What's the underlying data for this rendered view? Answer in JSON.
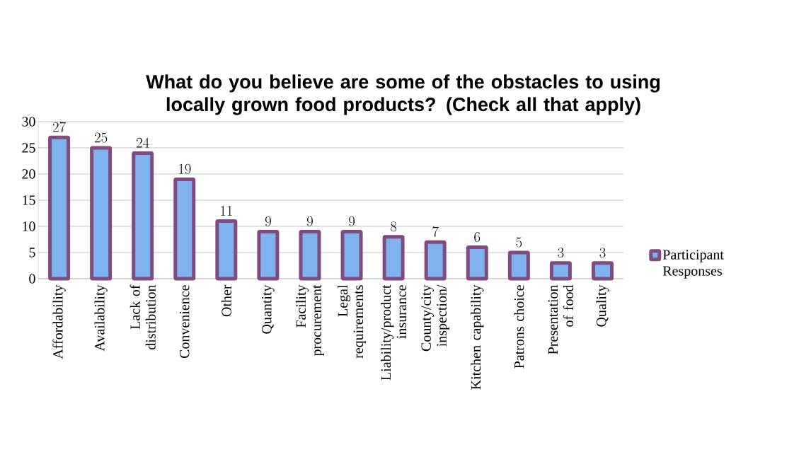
{
  "chart_data": {
    "type": "bar",
    "title": "What do you believe are some of the obstacles to using locally grown food products? (Check all that apply)",
    "categories": [
      "Affordability",
      "Availability",
      "Lack of distribution",
      "Convenience",
      "Other",
      "Quantity",
      "Facility procurement",
      "Legal requirements",
      "Liability/product insurance",
      "County/city inspection/",
      "Kitchen capability",
      "Patrons choice",
      "Presentation of food",
      "Quality"
    ],
    "series": [
      {
        "name": "Participant Responses",
        "color": "#7fb2ee",
        "values": [
          27,
          25,
          24,
          19,
          11,
          9,
          9,
          9,
          8,
          7,
          6,
          5,
          3,
          3
        ]
      }
    ],
    "ylim": [
      0,
      30
    ],
    "yticks": [
      0,
      5,
      10,
      15,
      20,
      25,
      30
    ],
    "grid": "y",
    "legend": "right",
    "data_labels": true
  }
}
